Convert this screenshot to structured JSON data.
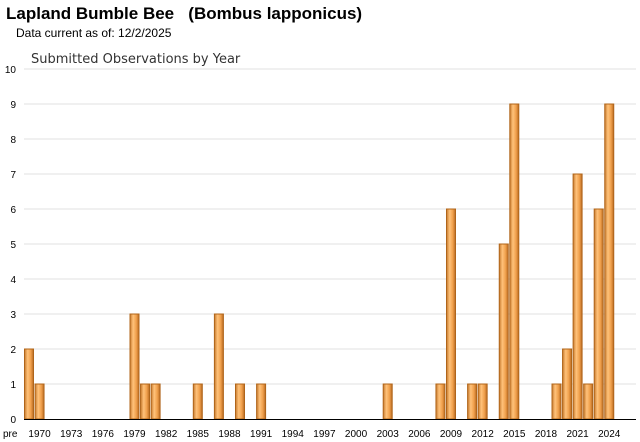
{
  "header": {
    "title": "Lapland Bumble Bee   (Bombus lapponicus)",
    "data_current": "Data current as of: 12/2/2025"
  },
  "colors": {
    "bar": "#f0a04c",
    "bar_edge": "#b0651a",
    "grid": "#e2e2e2",
    "axis": "#000000"
  },
  "chart_data": {
    "type": "bar",
    "title": "Submitted Observations by Year",
    "xlabel": "",
    "ylabel": "",
    "ylim": [
      0,
      10
    ],
    "yticks": [
      0,
      1,
      2,
      3,
      4,
      5,
      6,
      7,
      8,
      9,
      10
    ],
    "grid": true,
    "categories": [
      "pre 1970",
      "1970",
      "1971",
      "1972",
      "1973",
      "1974",
      "1975",
      "1976",
      "1977",
      "1978",
      "1979",
      "1980",
      "1981",
      "1982",
      "1983",
      "1984",
      "1985",
      "1986",
      "1987",
      "1988",
      "1989",
      "1990",
      "1991",
      "1992",
      "1993",
      "1994",
      "1995",
      "1996",
      "1997",
      "1998",
      "1999",
      "2000",
      "2001",
      "2002",
      "2003",
      "2004",
      "2005",
      "2006",
      "2007",
      "2008",
      "2009",
      "2010",
      "2011",
      "2012",
      "2013",
      "2014",
      "2015",
      "2016",
      "2017",
      "2018",
      "2019",
      "2020",
      "2021",
      "2022",
      "2023",
      "2024",
      "2025"
    ],
    "values": [
      2,
      1,
      0,
      0,
      0,
      0,
      0,
      0,
      0,
      0,
      3,
      1,
      1,
      0,
      0,
      0,
      1,
      0,
      3,
      0,
      1,
      0,
      1,
      0,
      0,
      0,
      0,
      0,
      0,
      0,
      0,
      0,
      0,
      0,
      1,
      0,
      0,
      0,
      0,
      1,
      6,
      0,
      1,
      1,
      0,
      5,
      9,
      0,
      0,
      0,
      1,
      2,
      7,
      1,
      6,
      9,
      0
    ],
    "xtick_labels": [
      "pre",
      "1970",
      "1973",
      "1976",
      "1979",
      "1982",
      "1985",
      "1988",
      "1991",
      "1994",
      "1997",
      "2000",
      "2003",
      "2006",
      "2009",
      "2012",
      "2015",
      "2018",
      "2021",
      "2024"
    ]
  }
}
